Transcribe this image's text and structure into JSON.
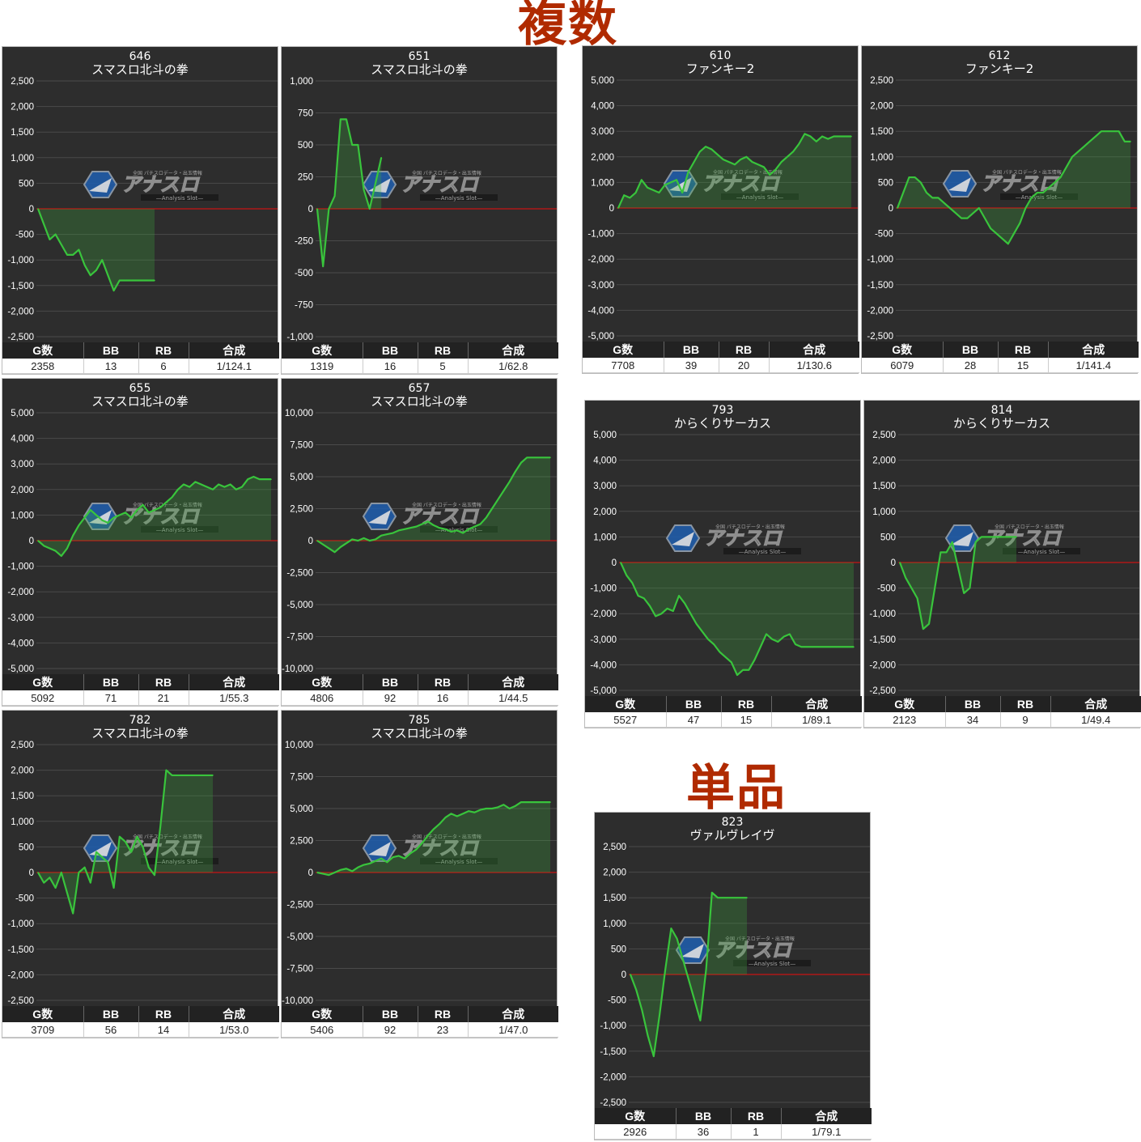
{
  "headings": {
    "multi": "複数",
    "single": "単品"
  },
  "stat_headers": {
    "games": "G数",
    "bb": "BB",
    "rb": "RB",
    "ratio": "合成"
  },
  "watermark": {
    "brand": "アナスロ",
    "subtitle": "—Analysis Slot—",
    "tagline": "全国 パチスロデータ・出玉情報"
  },
  "colors": {
    "background": "#2d2d2d",
    "line": "#39c43c",
    "zero_line": "#c81414",
    "heading": "#b02a00"
  },
  "chart_data": [
    {
      "type": "area",
      "machine_no": "646",
      "machine_name": "スマスロ北斗の拳",
      "ylim": [
        -2500,
        2500
      ],
      "yticks": [
        2500,
        2000,
        1500,
        1000,
        500,
        0,
        -500,
        -1000,
        -1500,
        -2000,
        -2500
      ],
      "ytick_labels": [
        "2,500",
        "2,000",
        "1,500",
        "1,000",
        "500",
        "0",
        "-500",
        "-1,000",
        "-1,500",
        "-2,000",
        "-2,500"
      ],
      "x": [
        0,
        1,
        2,
        3,
        4,
        5,
        6,
        7,
        8,
        9,
        10,
        11,
        12,
        13,
        14,
        15,
        16,
        17,
        18,
        19,
        20
      ],
      "values": [
        0,
        -300,
        -600,
        -500,
        -700,
        -900,
        -900,
        -800,
        -1100,
        -1300,
        -1200,
        -1000,
        -1300,
        -1600,
        -1400,
        -1400,
        -1400,
        -1400,
        -1400,
        -1400,
        -1400
      ],
      "stats": {
        "games": "2358",
        "bb": "13",
        "rb": "6",
        "ratio": "1/124.1"
      }
    },
    {
      "type": "area",
      "machine_no": "651",
      "machine_name": "スマスロ北斗の拳",
      "ylim": [
        -1000,
        1000
      ],
      "yticks": [
        1000,
        750,
        500,
        250,
        0,
        -250,
        -500,
        -750,
        -1000
      ],
      "ytick_labels": [
        "1,000",
        "750",
        "500",
        "250",
        "0",
        "-250",
        "-500",
        "-750",
        "-1,000"
      ],
      "x": [
        0,
        1,
        2,
        3,
        4,
        5,
        6,
        7,
        8,
        9,
        10,
        11
      ],
      "values": [
        0,
        -450,
        0,
        100,
        700,
        700,
        500,
        500,
        150,
        0,
        200,
        400
      ],
      "stats": {
        "games": "1319",
        "bb": "16",
        "rb": "5",
        "ratio": "1/62.8"
      }
    },
    {
      "type": "area",
      "machine_no": "610",
      "machine_name": "ファンキー2",
      "ylim": [
        -5000,
        5000
      ],
      "yticks": [
        5000,
        4000,
        3000,
        2000,
        1000,
        0,
        -1000,
        -2000,
        -3000,
        -4000,
        -5000
      ],
      "ytick_labels": [
        "5,000",
        "4,000",
        "3,000",
        "2,000",
        "1,000",
        "0",
        "-1,000",
        "-2,000",
        "-3,000",
        "-4,000",
        "-5,000"
      ],
      "x": [
        0,
        1,
        2,
        3,
        4,
        5,
        6,
        7,
        8,
        9,
        10,
        11,
        12,
        13,
        14,
        15,
        16,
        17,
        18,
        19,
        20,
        21,
        22,
        23,
        24,
        25,
        26,
        27,
        28,
        29,
        30,
        31,
        32,
        33,
        34,
        35,
        36,
        37,
        38,
        39,
        40
      ],
      "values": [
        0,
        500,
        400,
        600,
        1100,
        800,
        700,
        600,
        900,
        1000,
        1100,
        600,
        1400,
        1800,
        2200,
        2400,
        2300,
        2100,
        1900,
        1800,
        1700,
        1900,
        2000,
        1800,
        1700,
        1600,
        1300,
        1500,
        1800,
        2000,
        2200,
        2500,
        2900,
        2800,
        2600,
        2800,
        2700,
        2800,
        2800,
        2800,
        2800
      ],
      "stats": {
        "games": "7708",
        "bb": "39",
        "rb": "20",
        "ratio": "1/130.6"
      }
    },
    {
      "type": "area",
      "machine_no": "612",
      "machine_name": "ファンキー2",
      "ylim": [
        -2500,
        2500
      ],
      "yticks": [
        2500,
        2000,
        1500,
        1000,
        500,
        0,
        -500,
        -1000,
        -1500,
        -2000,
        -2500
      ],
      "ytick_labels": [
        "2,500",
        "2,000",
        "1,500",
        "1,000",
        "500",
        "0",
        "-500",
        "-1,000",
        "-1,500",
        "-2,000",
        "-2,500"
      ],
      "x": [
        0,
        1,
        2,
        3,
        4,
        5,
        6,
        7,
        8,
        9,
        10,
        11,
        12,
        13,
        14,
        15,
        16,
        17,
        18,
        19,
        20,
        21,
        22,
        23,
        24,
        25,
        26,
        27,
        28,
        29,
        30,
        31,
        32,
        33,
        34,
        35,
        36,
        37,
        38,
        39,
        40
      ],
      "values": [
        0,
        300,
        600,
        600,
        500,
        300,
        200,
        200,
        100,
        0,
        -100,
        -200,
        -200,
        -100,
        0,
        -200,
        -400,
        -500,
        -600,
        -700,
        -500,
        -300,
        0,
        200,
        300,
        300,
        400,
        500,
        600,
        800,
        1000,
        1100,
        1200,
        1300,
        1400,
        1500,
        1500,
        1500,
        1500,
        1300,
        1300
      ],
      "stats": {
        "games": "6079",
        "bb": "28",
        "rb": "15",
        "ratio": "1/141.4"
      }
    },
    {
      "type": "area",
      "machine_no": "655",
      "machine_name": "スマスロ北斗の拳",
      "ylim": [
        -5000,
        5000
      ],
      "yticks": [
        5000,
        4000,
        3000,
        2000,
        1000,
        0,
        -1000,
        -2000,
        -3000,
        -4000,
        -5000
      ],
      "ytick_labels": [
        "5,000",
        "4,000",
        "3,000",
        "2,000",
        "1,000",
        "0",
        "-1,000",
        "-2,000",
        "-3,000",
        "-4,000",
        "-5,000"
      ],
      "x": [
        0,
        1,
        2,
        3,
        4,
        5,
        6,
        7,
        8,
        9,
        10,
        11,
        12,
        13,
        14,
        15,
        16,
        17,
        18,
        19,
        20,
        21,
        22,
        23,
        24,
        25,
        26,
        27,
        28,
        29,
        30,
        31,
        32,
        33,
        34,
        35,
        36,
        37,
        38,
        39,
        40
      ],
      "values": [
        0,
        -200,
        -300,
        -400,
        -600,
        -300,
        200,
        600,
        900,
        1200,
        1000,
        800,
        700,
        900,
        1000,
        1100,
        900,
        1200,
        1400,
        1100,
        1200,
        1300,
        1500,
        1700,
        2000,
        2200,
        2100,
        2300,
        2200,
        2100,
        2000,
        2200,
        2100,
        2200,
        2000,
        2100,
        2400,
        2500,
        2400,
        2400,
        2400
      ],
      "stats": {
        "games": "5092",
        "bb": "71",
        "rb": "21",
        "ratio": "1/55.3"
      }
    },
    {
      "type": "area",
      "machine_no": "657",
      "machine_name": "スマスロ北斗の拳",
      "ylim": [
        -10000,
        10000
      ],
      "yticks": [
        10000,
        7500,
        5000,
        2500,
        0,
        -2500,
        -5000,
        -7500,
        -10000
      ],
      "ytick_labels": [
        "10,000",
        "7,500",
        "5,000",
        "2,500",
        "0",
        "-2,500",
        "-5,000",
        "-7,500",
        "-10,000"
      ],
      "x": [
        0,
        1,
        2,
        3,
        4,
        5,
        6,
        7,
        8,
        9,
        10,
        11,
        12,
        13,
        14,
        15,
        16,
        17,
        18,
        19,
        20,
        21,
        22,
        23,
        24,
        25,
        26,
        27,
        28,
        29,
        30,
        31,
        32,
        33,
        34,
        35,
        36,
        37,
        38,
        39,
        40
      ],
      "values": [
        0,
        -300,
        -600,
        -900,
        -500,
        -200,
        100,
        0,
        200,
        0,
        100,
        400,
        500,
        600,
        800,
        900,
        1000,
        1100,
        1300,
        1500,
        1200,
        1000,
        900,
        700,
        800,
        600,
        900,
        1100,
        1300,
        1800,
        2500,
        3200,
        3900,
        4600,
        5400,
        6100,
        6500,
        6500,
        6500,
        6500,
        6500
      ],
      "stats": {
        "games": "4806",
        "bb": "92",
        "rb": "16",
        "ratio": "1/44.5"
      }
    },
    {
      "type": "area",
      "machine_no": "793",
      "machine_name": "からくりサーカス",
      "ylim": [
        -5000,
        5000
      ],
      "yticks": [
        5000,
        4000,
        3000,
        2000,
        1000,
        0,
        -1000,
        -2000,
        -3000,
        -4000,
        -5000
      ],
      "ytick_labels": [
        "5,000",
        "4,000",
        "3,000",
        "2,000",
        "1,000",
        "0",
        "-1,000",
        "-2,000",
        "-3,000",
        "-4,000",
        "-5,000"
      ],
      "x": [
        0,
        1,
        2,
        3,
        4,
        5,
        6,
        7,
        8,
        9,
        10,
        11,
        12,
        13,
        14,
        15,
        16,
        17,
        18,
        19,
        20,
        21,
        22,
        23,
        24,
        25,
        26,
        27,
        28,
        29,
        30,
        31,
        32,
        33,
        34,
        35,
        36,
        37,
        38,
        39,
        40
      ],
      "values": [
        0,
        -500,
        -800,
        -1300,
        -1400,
        -1700,
        -2100,
        -2000,
        -1800,
        -1900,
        -1300,
        -1600,
        -2000,
        -2400,
        -2700,
        -3000,
        -3200,
        -3500,
        -3700,
        -3900,
        -4400,
        -4200,
        -4200,
        -3800,
        -3300,
        -2800,
        -3000,
        -3100,
        -2900,
        -2800,
        -3200,
        -3300,
        -3300,
        -3300,
        -3300,
        -3300,
        -3300,
        -3300,
        -3300,
        -3300,
        -3300
      ],
      "stats": {
        "games": "5527",
        "bb": "47",
        "rb": "15",
        "ratio": "1/89.1"
      }
    },
    {
      "type": "area",
      "machine_no": "814",
      "machine_name": "からくりサーカス",
      "ylim": [
        -2500,
        2500
      ],
      "yticks": [
        2500,
        2000,
        1500,
        1000,
        500,
        0,
        -500,
        -1000,
        -1500,
        -2000,
        -2500
      ],
      "ytick_labels": [
        "2,500",
        "2,000",
        "1,500",
        "1,000",
        "500",
        "0",
        "-500",
        "-1,000",
        "-1,500",
        "-2,000",
        "-2,500"
      ],
      "x": [
        0,
        1,
        2,
        3,
        4,
        5,
        6,
        7,
        8,
        9,
        10,
        11,
        12,
        13,
        14,
        15,
        16,
        17,
        18,
        19,
        20
      ],
      "values": [
        0,
        -300,
        -500,
        -700,
        -1300,
        -1200,
        -500,
        200,
        200,
        400,
        -100,
        -600,
        -500,
        400,
        500,
        500,
        500,
        500,
        500,
        500,
        500
      ],
      "stats": {
        "games": "2123",
        "bb": "34",
        "rb": "9",
        "ratio": "1/49.4"
      }
    },
    {
      "type": "area",
      "machine_no": "782",
      "machine_name": "スマスロ北斗の拳",
      "ylim": [
        -2500,
        2500
      ],
      "yticks": [
        2500,
        2000,
        1500,
        1000,
        500,
        0,
        -500,
        -1000,
        -1500,
        -2000,
        -2500
      ],
      "ytick_labels": [
        "2,500",
        "2,000",
        "1,500",
        "1,000",
        "500",
        "0",
        "-500",
        "-1,000",
        "-1,500",
        "-2,000",
        "-2,500"
      ],
      "x": [
        0,
        1,
        2,
        3,
        4,
        5,
        6,
        7,
        8,
        9,
        10,
        11,
        12,
        13,
        14,
        15,
        16,
        17,
        18,
        19,
        20,
        21,
        22,
        23,
        24,
        25,
        26,
        27,
        28,
        29,
        30
      ],
      "values": [
        0,
        -200,
        -100,
        -300,
        0,
        -400,
        -800,
        0,
        100,
        -200,
        400,
        300,
        200,
        -300,
        700,
        600,
        400,
        700,
        500,
        100,
        -50,
        900,
        2000,
        1900,
        1900,
        1900,
        1900,
        1900,
        1900,
        1900,
        1900
      ],
      "stats": {
        "games": "3709",
        "bb": "56",
        "rb": "14",
        "ratio": "1/53.0"
      }
    },
    {
      "type": "area",
      "machine_no": "785",
      "machine_name": "スマスロ北斗の拳",
      "ylim": [
        -10000,
        10000
      ],
      "yticks": [
        10000,
        7500,
        5000,
        2500,
        0,
        -2500,
        -5000,
        -7500,
        -10000
      ],
      "ytick_labels": [
        "10,000",
        "7,500",
        "5,000",
        "2,500",
        "0",
        "-2,500",
        "-5,000",
        "-7,500",
        "-10,000"
      ],
      "x": [
        0,
        1,
        2,
        3,
        4,
        5,
        6,
        7,
        8,
        9,
        10,
        11,
        12,
        13,
        14,
        15,
        16,
        17,
        18,
        19,
        20,
        21,
        22,
        23,
        24,
        25,
        26,
        27,
        28,
        29,
        30,
        31,
        32,
        33,
        34,
        35,
        36,
        37,
        38,
        39,
        40
      ],
      "values": [
        0,
        -100,
        -200,
        0,
        200,
        300,
        100,
        400,
        600,
        700,
        900,
        1100,
        800,
        1200,
        1300,
        1100,
        1500,
        1800,
        2300,
        2900,
        3400,
        3800,
        4300,
        4600,
        4400,
        4600,
        4800,
        4700,
        4900,
        5000,
        5000,
        5100,
        5300,
        5000,
        5200,
        5500,
        5500,
        5500,
        5500,
        5500,
        5500
      ],
      "stats": {
        "games": "5406",
        "bb": "92",
        "rb": "23",
        "ratio": "1/47.0"
      }
    },
    {
      "type": "area",
      "machine_no": "823",
      "machine_name": "ヴァルヴレイヴ",
      "ylim": [
        -2500,
        2500
      ],
      "yticks": [
        2500,
        2000,
        1500,
        1000,
        500,
        0,
        -500,
        -1000,
        -1500,
        -2000,
        -2500
      ],
      "ytick_labels": [
        "2,500",
        "2,000",
        "1,500",
        "1,000",
        "500",
        "0",
        "-500",
        "-1,000",
        "-1,500",
        "-2,000",
        "-2,500"
      ],
      "x": [
        0,
        1,
        2,
        3,
        4,
        5,
        6,
        7,
        8,
        9,
        10,
        11,
        12,
        13,
        14,
        15,
        16,
        17,
        18,
        19,
        20
      ],
      "values": [
        0,
        -300,
        -700,
        -1200,
        -1600,
        -800,
        100,
        900,
        700,
        300,
        -100,
        -500,
        -900,
        100,
        1600,
        1500,
        1500,
        1500,
        1500,
        1500,
        1500
      ],
      "stats": {
        "games": "2926",
        "bb": "36",
        "rb": "1",
        "ratio": "1/79.1"
      }
    }
  ]
}
